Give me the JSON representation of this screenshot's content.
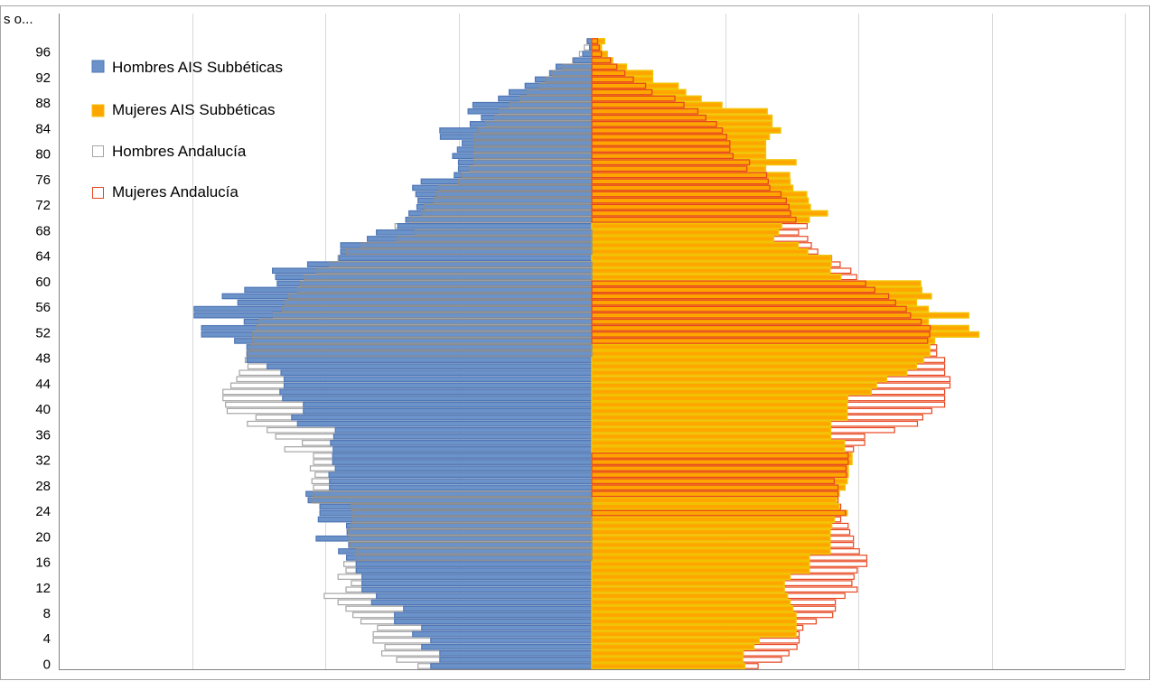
{
  "chart_data": {
    "type": "bar",
    "orientation": "horizontal-population-pyramid",
    "title": "",
    "xlabel": "",
    "ylabel": "",
    "grid": "vertical gridlines",
    "legend_position": "top-left inside plot",
    "x_unit": "share of population (relative scale, males plotted to the left)",
    "xlim": [
      -100,
      100
    ],
    "y_categories": [
      "0",
      "1",
      "2",
      "3",
      "4",
      "5",
      "6",
      "7",
      "8",
      "9",
      "10",
      "11",
      "12",
      "13",
      "14",
      "15",
      "16",
      "17",
      "18",
      "19",
      "20",
      "21",
      "22",
      "23",
      "24",
      "25",
      "26",
      "27",
      "28",
      "29",
      "30",
      "31",
      "32",
      "33",
      "34",
      "35",
      "36",
      "37",
      "38",
      "39",
      "40",
      "41",
      "42",
      "43",
      "44",
      "45",
      "46",
      "47",
      "48",
      "49",
      "50",
      "51",
      "52",
      "53",
      "54",
      "55",
      "56",
      "57",
      "58",
      "59",
      "60",
      "61",
      "62",
      "63",
      "64",
      "65",
      "66",
      "67",
      "68",
      "69",
      "70",
      "71",
      "72",
      "73",
      "74",
      "75",
      "76",
      "77",
      "78",
      "79",
      "80",
      "81",
      "82",
      "83",
      "84",
      "85",
      "86",
      "87",
      "88",
      "89",
      "90",
      "91",
      "92",
      "93",
      "94",
      "95",
      "96",
      "97",
      "98"
    ],
    "y_tick_labels": [
      "0",
      "4",
      "8",
      "12",
      "16",
      "20",
      "24",
      "28",
      "32",
      "36",
      "40",
      "44",
      "48",
      "52",
      "56",
      "60",
      "64",
      "68",
      "72",
      "76",
      "80",
      "84",
      "88",
      "92",
      "96",
      "s o..."
    ],
    "series": [
      {
        "name": "Hombres AIS Subbéticas",
        "side": "left",
        "style": "blue-fill",
        "color": "#6b93c9",
        "border": "#4f76b5",
        "values": [
          30.2,
          28.5,
          28.5,
          31.9,
          30.2,
          33.6,
          31.9,
          37.0,
          37.0,
          35.3,
          41.3,
          40.4,
          43.1,
          43.1,
          43.1,
          44.2,
          44.2,
          46.0,
          47.5,
          45.6,
          51.7,
          45.9,
          46.0,
          51.3,
          51.0,
          51.0,
          53.2,
          53.6,
          49.2,
          49.2,
          49.3,
          48.1,
          48.6,
          48.6,
          48.5,
          49.0,
          48.4,
          48.1,
          55.2,
          56.3,
          54.1,
          54.1,
          58.0,
          58.5,
          57.7,
          57.7,
          58.3,
          60.9,
          64.7,
          64.7,
          64.7,
          67.0,
          73.2,
          73.2,
          65.2,
          74.6,
          74.6,
          66.4,
          69.3,
          65.1,
          59.0,
          59.3,
          59.9,
          53.3,
          47.4,
          47.1,
          47.1,
          42.1,
          40.4,
          36.4,
          34.9,
          34.3,
          32.8,
          32.6,
          33.0,
          33.6,
          32.0,
          25.8,
          25.0,
          25.0,
          26.1,
          25.2,
          24.3,
          28.4,
          28.5,
          22.8,
          20.7,
          23.2,
          22.3,
          17.5,
          15.5,
          12.5,
          10.6,
          7.9,
          6.7,
          3.4,
          1.7,
          0.4,
          0.8
        ]
      },
      {
        "name": "Mujeres AIS Subbéticas",
        "side": "right",
        "style": "orange-fill",
        "color": "#ffa500",
        "border": "#f2c200",
        "values": [
          28.7,
          28.3,
          28.4,
          30.4,
          31.4,
          38.3,
          38.3,
          38.3,
          38.3,
          37.7,
          37.2,
          36.7,
          36.1,
          36.1,
          37.2,
          40.8,
          40.8,
          40.8,
          44.7,
          44.7,
          44.7,
          44.7,
          45.0,
          45.5,
          47.9,
          46.4,
          45.9,
          46.4,
          47.5,
          47.9,
          48.1,
          48.1,
          48.8,
          48.8,
          47.4,
          47.4,
          44.8,
          44.8,
          44.8,
          47.9,
          47.9,
          47.9,
          48.0,
          52.4,
          53.4,
          55.3,
          59.1,
          60.9,
          62.2,
          63.4,
          63.4,
          64.3,
          72.6,
          70.7,
          63.1,
          70.7,
          63.1,
          60.9,
          63.7,
          61.9,
          61.7,
          46.7,
          44.7,
          44.9,
          44.9,
          40.5,
          38.7,
          34.1,
          35.0,
          35.6,
          40.8,
          44.2,
          41.0,
          40.6,
          40.3,
          37.7,
          37.2,
          37.1,
          32.6,
          38.3,
          32.6,
          32.6,
          32.6,
          33.3,
          35.4,
          33.8,
          33.8,
          32.9,
          24.4,
          20.5,
          17.6,
          16.2,
          11.4,
          11.4,
          6.5,
          3.9,
          2.9,
          1.8,
          2.4
        ]
      },
      {
        "name": "Hombres Andalucía",
        "side": "left",
        "style": "white-outline",
        "color": "#ffffff",
        "border": "#a6a6a6",
        "values": [
          32.6,
          36.6,
          39.4,
          38.8,
          41.0,
          41.0,
          40.2,
          43.3,
          44.8,
          46.1,
          47.6,
          50.2,
          46.1,
          45.1,
          47.6,
          46.1,
          46.5,
          44.3,
          44.1,
          45.4,
          45.4,
          45.7,
          45.1,
          44.8,
          45.0,
          45.1,
          52.5,
          52.2,
          52.2,
          52.5,
          51.9,
          52.8,
          52.2,
          52.2,
          57.6,
          54.3,
          59.3,
          60.9,
          64.6,
          63.0,
          68.4,
          68.7,
          69.2,
          69.2,
          67.7,
          66.6,
          66.1,
          64.5,
          65.0,
          64.5,
          63.9,
          63.6,
          63.6,
          62.9,
          62.4,
          59.7,
          58.0,
          57.5,
          56.9,
          55.2,
          54.6,
          53.9,
          51.5,
          49.2,
          47.6,
          46.0,
          43.2,
          36.4,
          33.1,
          36.9,
          34.2,
          31.9,
          31.3,
          29.6,
          29.1,
          28.6,
          25.0,
          24.3,
          22.8,
          22.1,
          22.1,
          22.1,
          22.1,
          22.1,
          21.2,
          19.9,
          18.1,
          17.3,
          15.4,
          13.4,
          12.1,
          9.8,
          8.6,
          7.3,
          5.4,
          3.6,
          2.3,
          1.4,
          0.9
        ]
      },
      {
        "name": "Mujeres Andalucía",
        "side": "right",
        "style": "white-outline",
        "color": "#ffffff",
        "border": "#e8461f",
        "values": [
          31.2,
          35.6,
          37.0,
          38.5,
          38.9,
          38.9,
          39.6,
          42.1,
          45.2,
          45.7,
          45.7,
          47.5,
          49.8,
          48.8,
          49.2,
          49.8,
          51.6,
          51.6,
          50.2,
          49.1,
          49.1,
          48.4,
          48.1,
          46.7,
          47.6,
          46.7,
          46.2,
          46.2,
          46.2,
          45.5,
          47.8,
          47.7,
          48.1,
          48.1,
          49.1,
          51.2,
          51.2,
          56.8,
          61.1,
          62.1,
          63.8,
          66.2,
          66.2,
          66.2,
          67.2,
          67.2,
          66.2,
          66.2,
          66.2,
          64.7,
          64.7,
          63.0,
          63.4,
          63.5,
          61.8,
          59.8,
          59.0,
          57.0,
          55.7,
          53.1,
          51.4,
          49.7,
          48.6,
          46.6,
          45.0,
          42.4,
          41.2,
          40.5,
          38.8,
          40.4,
          38.3,
          37.3,
          37.0,
          36.5,
          35.5,
          33.4,
          33.1,
          32.8,
          29.1,
          29.6,
          26.5,
          25.9,
          25.9,
          25.3,
          24.5,
          23.4,
          21.4,
          19.9,
          17.3,
          15.6,
          11.3,
          10.1,
          7.8,
          6.2,
          4.7,
          3.5,
          1.8,
          1.4,
          1.1
        ]
      }
    ],
    "legend": [
      {
        "label": "Hombres AIS Subbéticas",
        "swatch": "blue-fill"
      },
      {
        "label": "Mujeres AIS Subbéticas",
        "swatch": "orange-fill"
      },
      {
        "label": "Hombres Andalucía",
        "swatch": "grey-outline"
      },
      {
        "label": "Mujeres Andalucía",
        "swatch": "red-outline"
      }
    ]
  }
}
